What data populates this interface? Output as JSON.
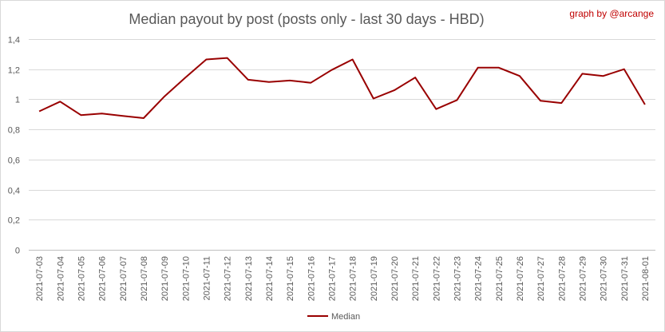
{
  "chart_data": {
    "type": "line",
    "title": "Median payout by post (posts only - last 30 days - HBD)",
    "credit": "graph by @arcange",
    "xlabel": "",
    "ylabel": "",
    "ylim": [
      0,
      1.4
    ],
    "y_ticks": [
      "0",
      "0,2",
      "0,4",
      "0,6",
      "0,8",
      "1",
      "1,2",
      "1,4"
    ],
    "grid": true,
    "legend_position": "bottom",
    "categories": [
      "2021-07-03",
      "2021-07-04",
      "2021-07-05",
      "2021-07-06",
      "2021-07-07",
      "2021-07-08",
      "2021-07-09",
      "2021-07-10",
      "2021-07-11",
      "2021-07-12",
      "2021-07-13",
      "2021-07-14",
      "2021-07-15",
      "2021-07-16",
      "2021-07-17",
      "2021-07-18",
      "2021-07-19",
      "2021-07-20",
      "2021-07-21",
      "2021-07-22",
      "2021-07-23",
      "2021-07-24",
      "2021-07-25",
      "2021-07-26",
      "2021-07-27",
      "2021-07-28",
      "2021-07-29",
      "2021-07-30",
      "2021-07-31",
      "2021-08-01"
    ],
    "series": [
      {
        "name": "Median",
        "color": "#990000",
        "values": [
          0.92,
          0.985,
          0.895,
          0.905,
          0.89,
          0.875,
          1.02,
          1.145,
          1.265,
          1.275,
          1.13,
          1.115,
          1.125,
          1.11,
          1.195,
          1.265,
          1.005,
          1.06,
          1.145,
          0.935,
          0.995,
          1.21,
          1.21,
          1.155,
          0.99,
          0.975,
          1.17,
          1.155,
          1.2,
          0.965
        ]
      }
    ]
  }
}
